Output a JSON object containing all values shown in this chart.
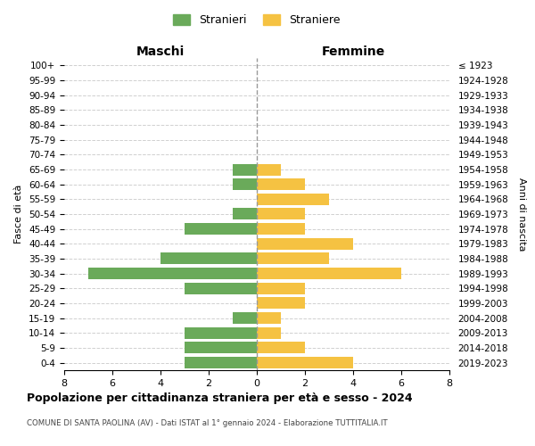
{
  "age_groups": [
    "100+",
    "95-99",
    "90-94",
    "85-89",
    "80-84",
    "75-79",
    "70-74",
    "65-69",
    "60-64",
    "55-59",
    "50-54",
    "45-49",
    "40-44",
    "35-39",
    "30-34",
    "25-29",
    "20-24",
    "15-19",
    "10-14",
    "5-9",
    "0-4"
  ],
  "birth_years": [
    "≤ 1923",
    "1924-1928",
    "1929-1933",
    "1934-1938",
    "1939-1943",
    "1944-1948",
    "1949-1953",
    "1954-1958",
    "1959-1963",
    "1964-1968",
    "1969-1973",
    "1974-1978",
    "1979-1983",
    "1984-1988",
    "1989-1993",
    "1994-1998",
    "1999-2003",
    "2004-2008",
    "2009-2013",
    "2014-2018",
    "2019-2023"
  ],
  "males": [
    0,
    0,
    0,
    0,
    0,
    0,
    0,
    1,
    1,
    0,
    1,
    3,
    0,
    4,
    7,
    3,
    0,
    1,
    3,
    3,
    3
  ],
  "females": [
    0,
    0,
    0,
    0,
    0,
    0,
    0,
    1,
    2,
    3,
    2,
    2,
    4,
    3,
    6,
    2,
    2,
    1,
    1,
    2,
    4
  ],
  "male_color": "#6aaa5a",
  "female_color": "#f5c242",
  "title": "Popolazione per cittadinanza straniera per età e sesso - 2024",
  "subtitle": "COMUNE DI SANTA PAOLINA (AV) - Dati ISTAT al 1° gennaio 2024 - Elaborazione TUTTITALIA.IT",
  "xlabel_left": "Maschi",
  "xlabel_right": "Femmine",
  "ylabel_left": "Fasce di età",
  "ylabel_right": "Anni di nascita",
  "legend_male": "Stranieri",
  "legend_female": "Straniere",
  "xlim": 8,
  "background_color": "#ffffff",
  "grid_color": "#d0d0d0"
}
